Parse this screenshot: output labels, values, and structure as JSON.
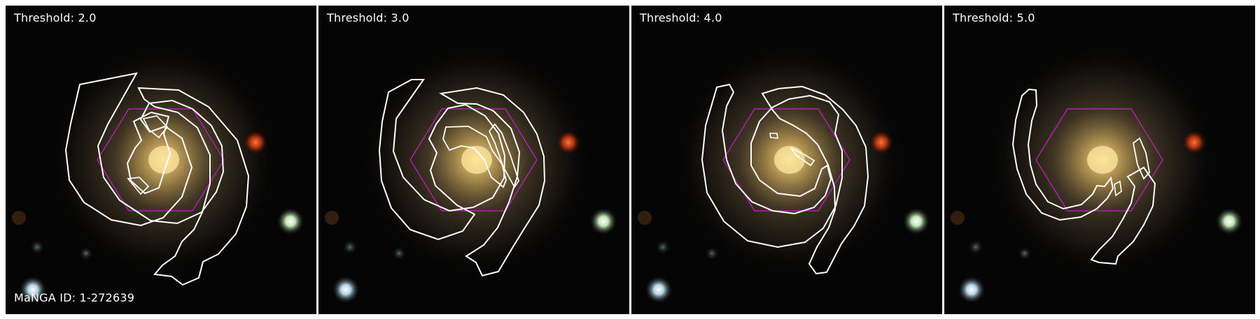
{
  "figure": {
    "galaxy_id_label": "MaNGA ID: 1-272639",
    "colors": {
      "background": "#000000",
      "contour": "#ffffff",
      "ifu_hexagon": "#b020b0",
      "galaxy_core": "#f2d27a",
      "galaxy_halo": "#6b5a3a",
      "red_star": "#ff5a1f",
      "green_star": "#d8ffc8",
      "blue_star": "#d8f0ff"
    },
    "panels": [
      {
        "title": "Threshold: 2.0"
      },
      {
        "title": "Threshold: 3.0"
      },
      {
        "title": "Threshold: 4.0"
      },
      {
        "title": "Threshold: 5.0"
      }
    ]
  }
}
